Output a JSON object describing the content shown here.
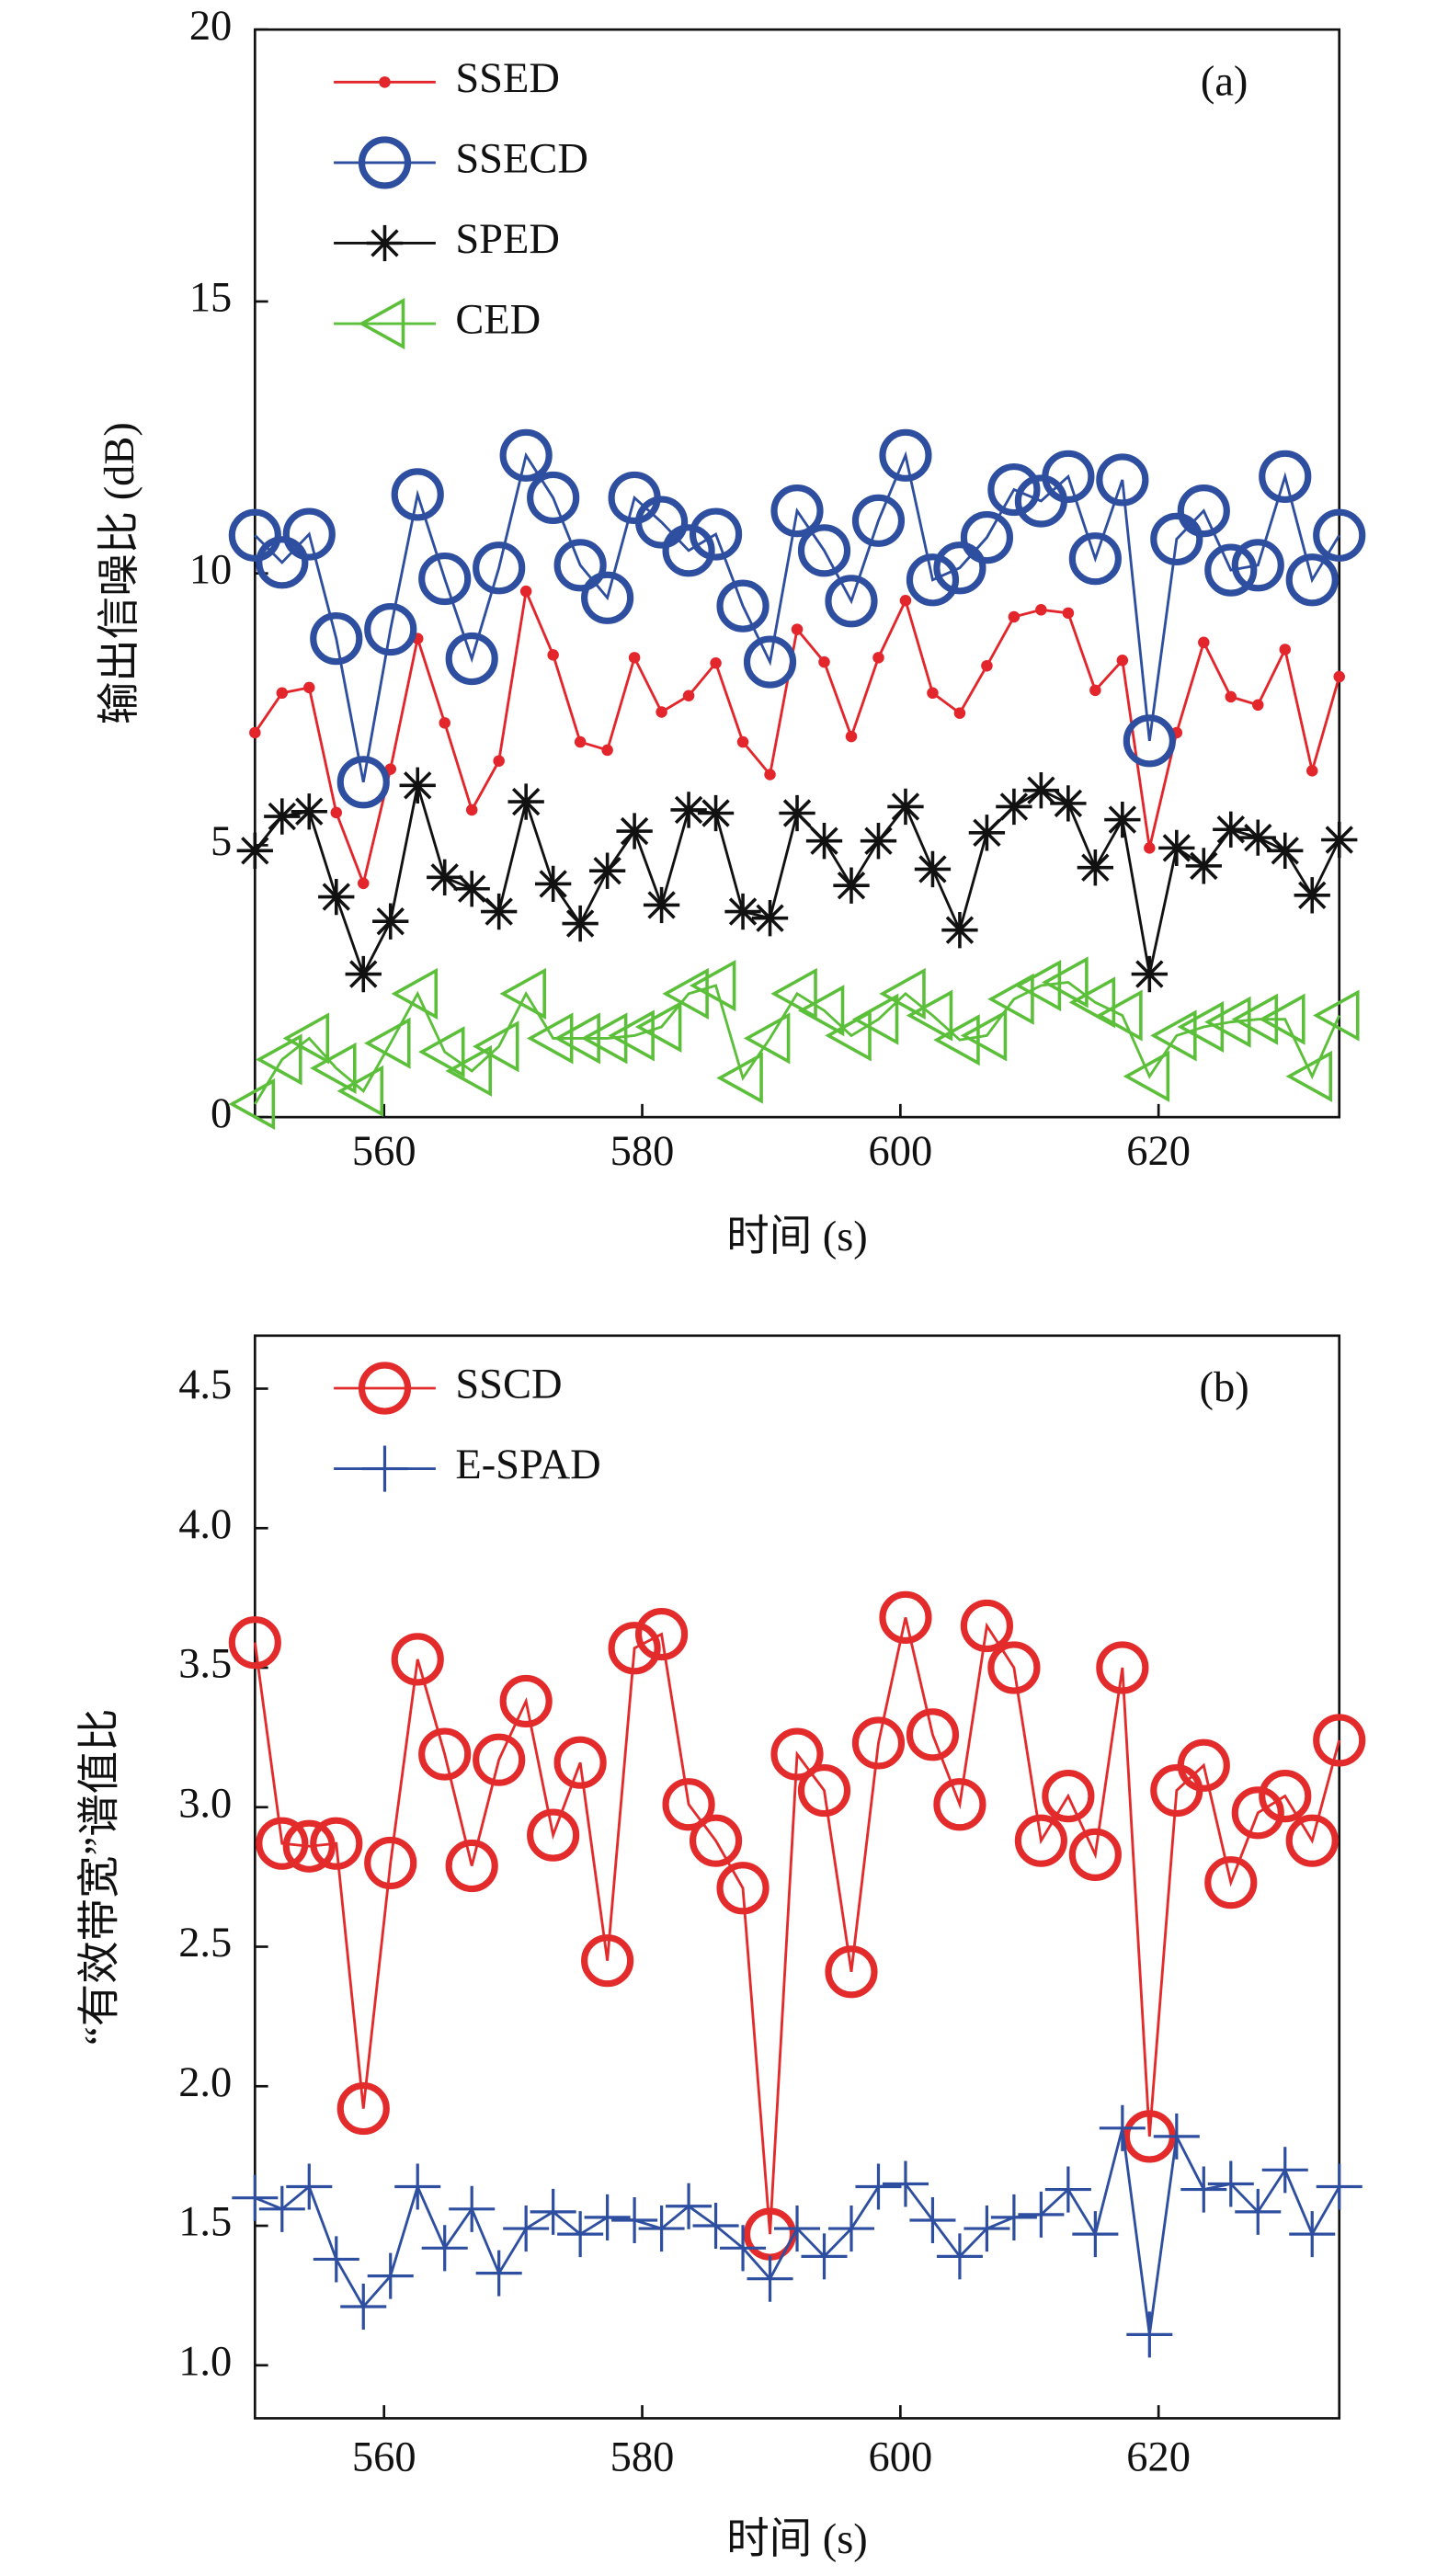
{
  "chart_data": [
    {
      "type": "line",
      "label": "(a)",
      "x_label": "时间 (s)",
      "y_label": "输出信噪比 (dB)",
      "x": [
        550,
        552.1,
        554.2,
        556.3,
        558.4,
        560.5,
        562.6,
        564.7,
        566.8,
        568.9,
        571,
        573.1,
        575.2,
        577.3,
        579.4,
        581.5,
        583.6,
        585.7,
        587.8,
        589.9,
        592,
        594.1,
        596.2,
        598.3,
        600.4,
        602.5,
        604.6,
        606.7,
        608.8,
        610.9,
        613,
        615.1,
        617.2,
        619.3,
        621.4,
        623.5,
        625.6,
        627.7,
        629.8,
        631.9,
        634
      ],
      "series": [
        {
          "name": "SSED",
          "color": "#e3262b",
          "marker": "dot",
          "values": [
            7.07,
            7.8,
            7.9,
            5.6,
            4.3,
            6.4,
            8.8,
            7.25,
            5.65,
            6.55,
            9.67,
            8.5,
            6.9,
            6.75,
            8.45,
            7.45,
            7.75,
            8.35,
            6.9,
            6.3,
            8.97,
            8.37,
            7.0,
            8.45,
            9.5,
            7.8,
            7.43,
            8.3,
            9.2,
            9.33,
            9.27,
            7.85,
            8.4,
            4.95,
            7.07,
            8.73,
            7.73,
            7.58,
            8.6,
            6.37,
            8.1
          ]
        },
        {
          "name": "SSECD",
          "color": "#2e4ea0",
          "marker": "circle",
          "values": [
            10.7,
            10.2,
            10.72,
            8.8,
            6.16,
            8.97,
            11.45,
            9.9,
            8.43,
            10.1,
            12.17,
            11.39,
            10.15,
            9.55,
            11.39,
            10.94,
            10.42,
            10.72,
            9.4,
            8.37,
            11.15,
            10.42,
            9.49,
            10.97,
            12.17,
            9.88,
            10.1,
            10.66,
            11.54,
            11.33,
            11.78,
            10.27,
            11.72,
            6.92,
            10.63,
            11.15,
            10.06,
            10.15,
            11.78,
            9.88,
            10.7
          ]
        },
        {
          "name": "SPED",
          "color": "#111111",
          "marker": "asterisk",
          "values": [
            4.9,
            5.53,
            5.62,
            4.05,
            2.63,
            3.6,
            6.1,
            4.41,
            4.2,
            3.78,
            5.8,
            4.29,
            3.56,
            4.53,
            5.26,
            3.9,
            5.65,
            5.59,
            3.78,
            3.66,
            5.59,
            5.08,
            4.26,
            5.08,
            5.71,
            4.56,
            3.44,
            5.23,
            5.71,
            6.01,
            5.77,
            4.59,
            5.47,
            2.63,
            4.95,
            4.62,
            5.29,
            5.14,
            4.9,
            4.08,
            5.1
          ]
        },
        {
          "name": "CED",
          "color": "#5bbf3a",
          "marker": "triangle-left",
          "values": [
            0.24,
            1.06,
            1.45,
            0.9,
            0.48,
            1.36,
            2.27,
            1.2,
            0.85,
            1.3,
            2.27,
            1.45,
            1.45,
            1.45,
            1.5,
            1.66,
            2.27,
            2.42,
            0.72,
            1.45,
            2.27,
            1.96,
            1.5,
            1.8,
            2.27,
            1.87,
            1.42,
            1.5,
            2.17,
            2.42,
            2.48,
            2.11,
            1.87,
            0.75,
            1.5,
            1.66,
            1.75,
            1.8,
            1.8,
            0.75,
            1.87
          ]
        }
      ],
      "xlim": [
        550,
        634
      ],
      "xticks": [
        560,
        580,
        600,
        620
      ],
      "ylim": [
        0,
        20
      ],
      "yticks": [
        0,
        5,
        10,
        15,
        20
      ],
      "legend": "upper left"
    },
    {
      "type": "line",
      "label": "(b)",
      "x_label": "时间 (s)",
      "y_label": "“有效带宽”谱值比",
      "x": [
        550,
        552.1,
        554.2,
        556.3,
        558.4,
        560.5,
        562.6,
        564.7,
        566.8,
        568.9,
        571,
        573.1,
        575.2,
        577.3,
        579.4,
        581.5,
        583.6,
        585.7,
        587.8,
        589.9,
        592,
        594.1,
        596.2,
        598.3,
        600.4,
        602.5,
        604.6,
        606.7,
        608.8,
        610.9,
        613,
        615.1,
        617.2,
        619.3,
        621.4,
        623.5,
        625.6,
        627.7,
        629.8,
        631.9,
        634
      ],
      "series": [
        {
          "name": "SSCD",
          "color": "#e32b2b",
          "marker": "circle",
          "values": [
            3.59,
            2.87,
            2.86,
            2.87,
            1.92,
            2.8,
            3.53,
            3.19,
            2.79,
            3.17,
            3.38,
            2.9,
            3.16,
            2.45,
            3.57,
            3.62,
            3.01,
            2.88,
            2.71,
            1.47,
            3.19,
            3.06,
            2.41,
            3.23,
            3.68,
            3.26,
            3.01,
            3.65,
            3.5,
            2.88,
            3.04,
            2.83,
            3.5,
            1.82,
            3.06,
            3.15,
            2.73,
            2.98,
            3.04,
            2.88,
            3.24
          ]
        },
        {
          "name": "E-SPAD",
          "color": "#2e4ea0",
          "marker": "plus",
          "values": [
            1.6,
            1.56,
            1.64,
            1.38,
            1.21,
            1.32,
            1.64,
            1.42,
            1.56,
            1.33,
            1.49,
            1.55,
            1.47,
            1.53,
            1.52,
            1.49,
            1.57,
            1.5,
            1.42,
            1.31,
            1.49,
            1.39,
            1.49,
            1.64,
            1.65,
            1.52,
            1.39,
            1.49,
            1.53,
            1.54,
            1.63,
            1.47,
            1.85,
            1.11,
            1.82,
            1.63,
            1.65,
            1.55,
            1.7,
            1.47,
            1.64
          ]
        }
      ],
      "xlim": [
        550,
        634
      ],
      "xticks": [
        560,
        580,
        600,
        620
      ],
      "ylim": [
        0.81,
        4.69
      ],
      "yticks": [
        {
          "value": 1,
          "label": "1.0"
        },
        1.5,
        {
          "value": 2,
          "label": "2.0"
        },
        2.5,
        {
          "value": 3,
          "label": "3.0"
        },
        3.5,
        {
          "value": 4,
          "label": "4.0"
        },
        4.5
      ],
      "legend": "upper left"
    }
  ]
}
